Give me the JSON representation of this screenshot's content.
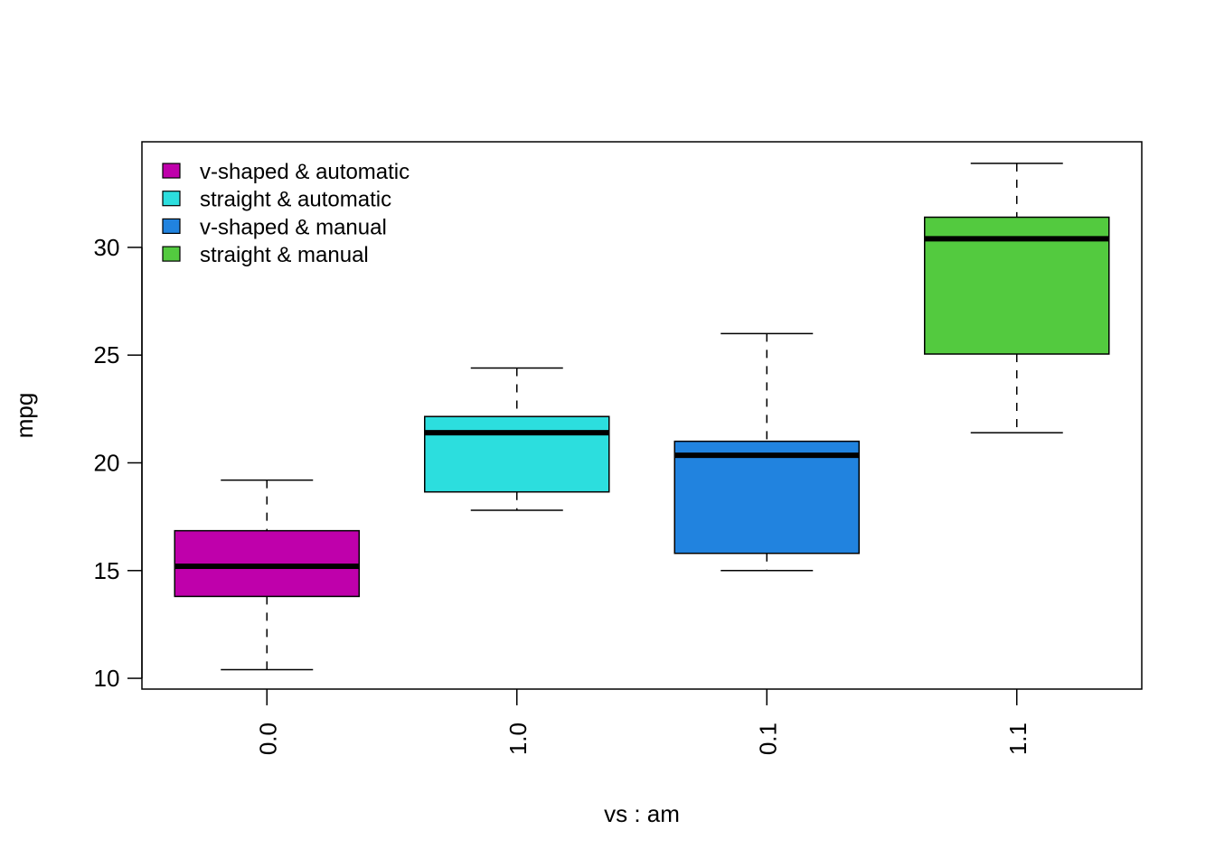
{
  "chart_data": {
    "type": "boxplot",
    "xlabel": "vs : am",
    "ylabel": "mpg",
    "title": "",
    "ylim": [
      9.5,
      34.9
    ],
    "yticks": [
      10,
      15,
      20,
      25,
      30
    ],
    "categories": [
      "0.0",
      "1.0",
      "0.1",
      "1.1"
    ],
    "boxes": [
      {
        "category": "0.0",
        "min": 10.4,
        "q1": 13.8,
        "median": 15.2,
        "q3": 16.85,
        "max": 19.2
      },
      {
        "category": "1.0",
        "min": 17.8,
        "q1": 18.65,
        "median": 21.4,
        "q3": 22.15,
        "max": 24.4
      },
      {
        "category": "0.1",
        "min": 15.0,
        "q1": 15.8,
        "median": 20.35,
        "q3": 21.0,
        "max": 26.0
      },
      {
        "category": "1.1",
        "min": 21.4,
        "q1": 25.05,
        "median": 30.4,
        "q3": 31.4,
        "max": 33.9
      }
    ],
    "colors": [
      "#BF00AB",
      "#2CDEDE",
      "#2183DF",
      "#53CA3F"
    ],
    "legend": {
      "placement": "top-left",
      "entries": [
        "v-shaped & automatic",
        "straight & automatic",
        "v-shaped & manual",
        "straight & manual"
      ]
    },
    "grid": false
  }
}
